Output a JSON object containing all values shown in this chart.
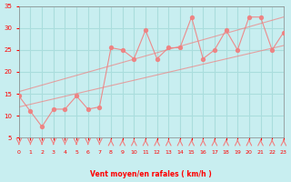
{
  "xlabel": "Vent moyen/en rafales ( km/h )",
  "ylabel": "",
  "bg_color": "#c8eef0",
  "grid_color": "#aadddd",
  "line_color": "#f08080",
  "scatter_color": "#f08080",
  "xlim": [
    0,
    23
  ],
  "ylim": [
    5,
    35
  ],
  "yticks": [
    5,
    10,
    15,
    20,
    25,
    30,
    35
  ],
  "xticks": [
    0,
    1,
    2,
    3,
    4,
    5,
    6,
    7,
    8,
    9,
    10,
    11,
    12,
    13,
    14,
    15,
    16,
    17,
    18,
    19,
    20,
    21,
    22,
    23
  ],
  "scatter_x": [
    0,
    1,
    2,
    3,
    4,
    5,
    6,
    7,
    8,
    9,
    10,
    11,
    12,
    13,
    14,
    15,
    16,
    17,
    18,
    19,
    20,
    21,
    22,
    23
  ],
  "scatter_y": [
    14.5,
    11,
    7.5,
    11.5,
    11.5,
    14.5,
    11.5,
    12.0,
    25.5,
    25.0,
    23.0,
    29.5,
    23.0,
    25.5,
    25.5,
    32.5,
    23.0,
    25.0,
    29.5,
    25.0,
    32.5,
    32.5,
    25.0,
    29.0
  ],
  "line1_x": [
    0,
    23
  ],
  "line1_y": [
    12.0,
    26.0
  ],
  "line2_x": [
    0,
    23
  ],
  "line2_y": [
    15.5,
    32.5
  ],
  "wind_arrows_down": [
    0,
    1,
    2,
    3,
    4,
    5,
    6,
    7
  ],
  "wind_arrows_up": [
    8,
    9,
    10,
    11,
    12,
    13,
    14,
    15,
    16,
    17,
    18,
    19,
    20,
    21,
    22,
    23
  ]
}
